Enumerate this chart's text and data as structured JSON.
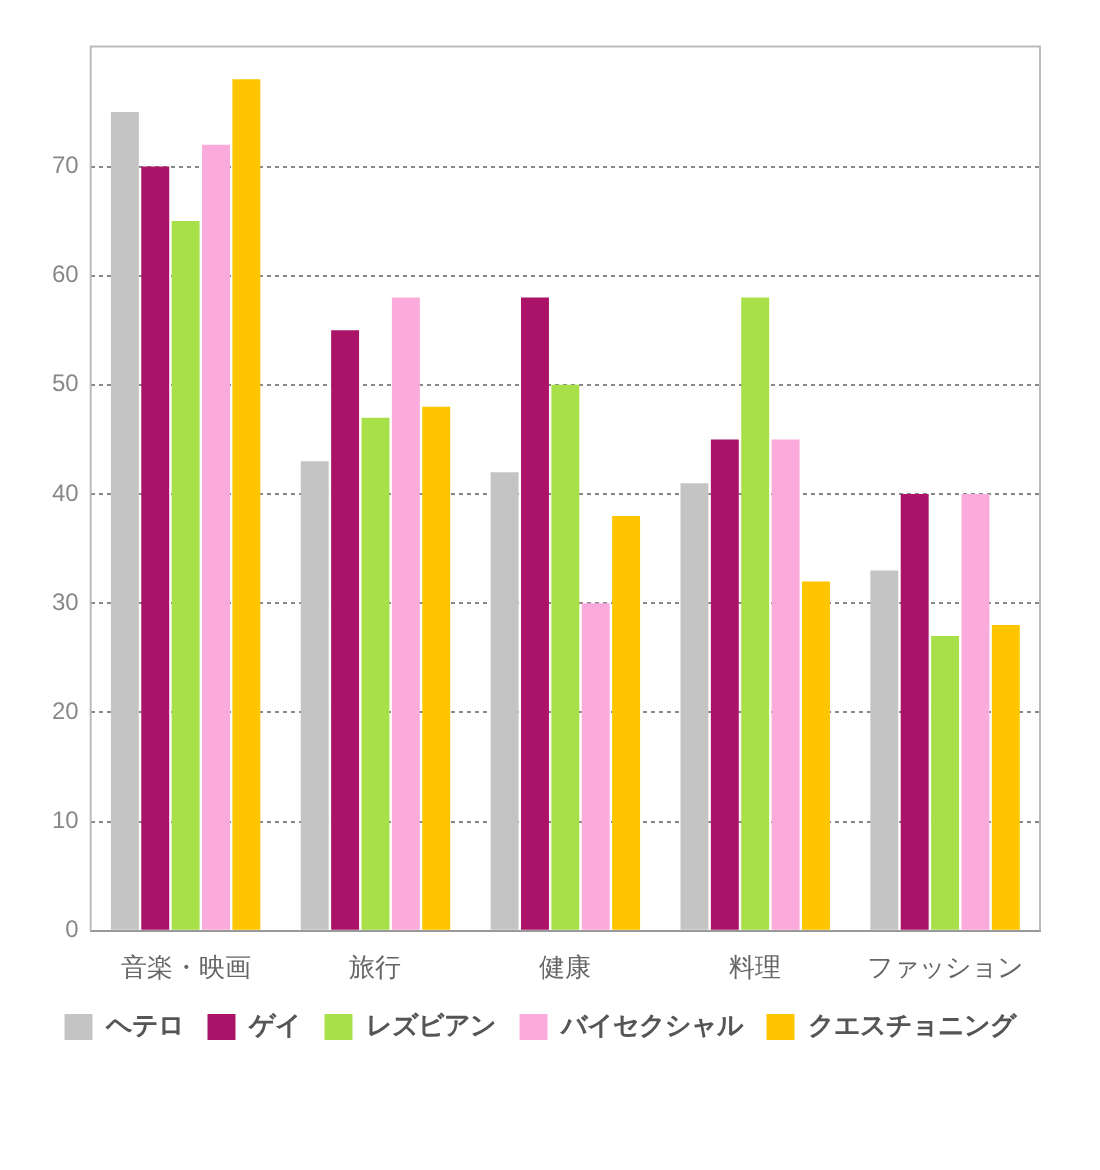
{
  "chart_data": {
    "type": "bar",
    "categories": [
      "音楽・映画",
      "旅行",
      "健康",
      "料理",
      "ファッション"
    ],
    "series": [
      {
        "name": "ヘテロ",
        "color": "#c4c4c4",
        "values": [
          75,
          43,
          42,
          41,
          33
        ]
      },
      {
        "name": "ゲイ",
        "color": "#ab1368",
        "values": [
          70,
          55,
          58,
          45,
          40
        ]
      },
      {
        "name": "レズビアン",
        "color": "#a8e04a",
        "values": [
          65,
          47,
          50,
          58,
          27
        ]
      },
      {
        "name": "バイセクシャル",
        "color": "#fbaadc",
        "values": [
          72,
          58,
          30,
          45,
          40
        ]
      },
      {
        "name": "クエスチョニング",
        "color": "#ffc600",
        "values": [
          78,
          48,
          38,
          32,
          28
        ]
      }
    ],
    "ylim": [
      0,
      81
    ],
    "yticks": [
      0,
      10,
      20,
      30,
      40,
      50,
      60,
      70
    ],
    "grid": "y",
    "legend": "bottom"
  }
}
